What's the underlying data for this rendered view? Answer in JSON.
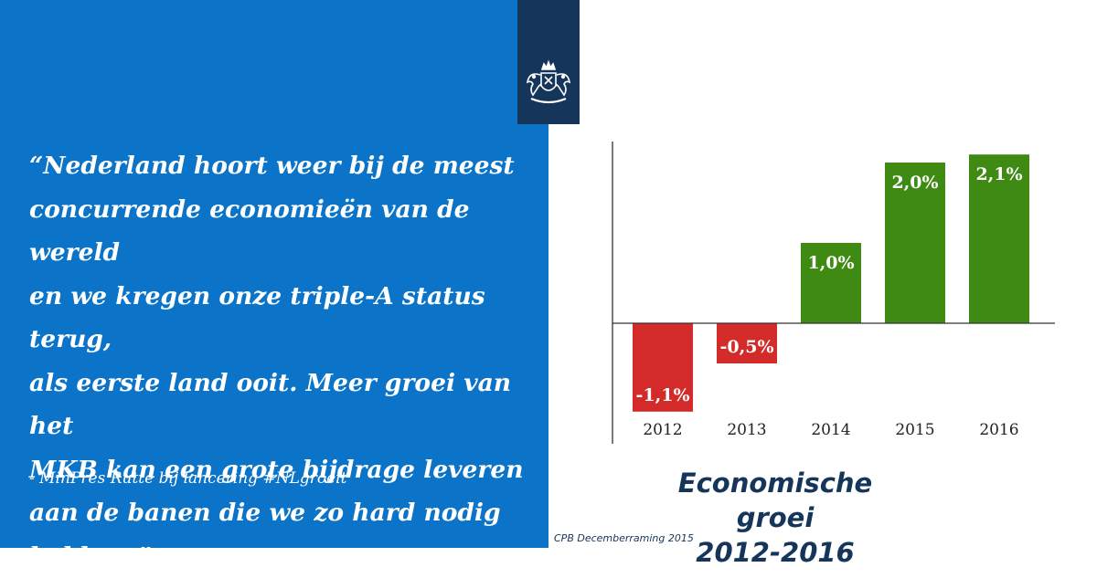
{
  "quote": {
    "text": "“Nederland hoort weer bij de meest\nconcurrende economieën van de wereld\nen we kregen onze triple-A status terug,\nals eerste land ooit. Meer groei van het\nMKB kan een grote bijdrage leveren\naan de banen die we zo hard nodig\nhebben.”",
    "attribution": "- MinPres Rutte bij lancering #NLgroeit"
  },
  "logo": {
    "icon": "rijksoverheid-coat-of-arms-icon"
  },
  "source": "CPB Decemberraming 2015",
  "colors": {
    "left_panel": "#0b74c8",
    "logo_block": "#15365a",
    "positive": "#3f8a12",
    "negative": "#d32a2a",
    "title": "#15365a"
  },
  "chart_data": {
    "type": "bar",
    "title_lines": [
      "Economische groei",
      "2012-2016"
    ],
    "categories": [
      "2012",
      "2013",
      "2014",
      "2015",
      "2016"
    ],
    "values": [
      -1.1,
      -0.5,
      1.0,
      2.0,
      2.1
    ],
    "value_labels": [
      "-1,1%",
      "-0,5%",
      "1,0%",
      "2,0%",
      "2,1%"
    ],
    "xlabel": "",
    "ylabel": "",
    "ylim": [
      -1.1,
      2.1
    ],
    "grid": false,
    "legend": "none"
  }
}
